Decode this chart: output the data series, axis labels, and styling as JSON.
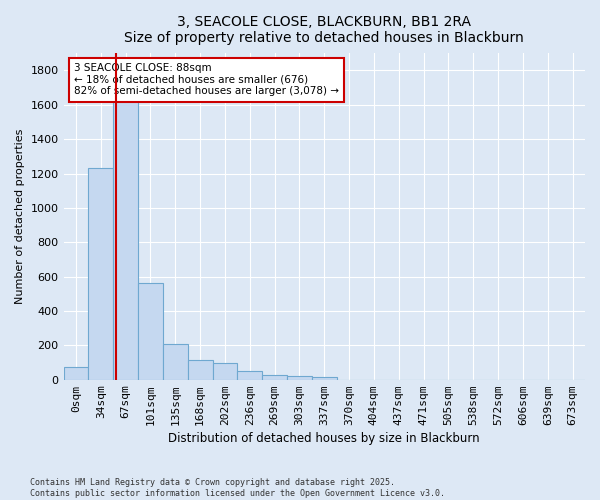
{
  "title": "3, SEACOLE CLOSE, BLACKBURN, BB1 2RA",
  "subtitle": "Size of property relative to detached houses in Blackburn",
  "xlabel": "Distribution of detached houses by size in Blackburn",
  "ylabel": "Number of detached properties",
  "bar_color": "#c5d8f0",
  "bar_edge_color": "#6fa8d0",
  "background_color": "#dde8f5",
  "grid_color": "#ffffff",
  "categories": [
    "0sqm",
    "34sqm",
    "67sqm",
    "101sqm",
    "135sqm",
    "168sqm",
    "202sqm",
    "236sqm",
    "269sqm",
    "303sqm",
    "337sqm",
    "370sqm",
    "404sqm",
    "437sqm",
    "471sqm",
    "505sqm",
    "538sqm",
    "572sqm",
    "606sqm",
    "639sqm",
    "673sqm"
  ],
  "values": [
    75,
    1230,
    1620,
    560,
    210,
    115,
    95,
    50,
    30,
    20,
    15,
    0,
    0,
    0,
    0,
    0,
    0,
    0,
    0,
    0,
    0
  ],
  "property_label": "3 SEACOLE CLOSE: 88sqm",
  "smaller_pct": 18,
  "smaller_count": 676,
  "larger_pct": 82,
  "larger_count": "3,078",
  "vline_color": "#cc0000",
  "annotation_box_color": "#cc0000",
  "vline_pos": 1.62,
  "ylim": [
    0,
    1900
  ],
  "yticks": [
    0,
    200,
    400,
    600,
    800,
    1000,
    1200,
    1400,
    1600,
    1800
  ],
  "footnote1": "Contains HM Land Registry data © Crown copyright and database right 2025.",
  "footnote2": "Contains public sector information licensed under the Open Government Licence v3.0."
}
